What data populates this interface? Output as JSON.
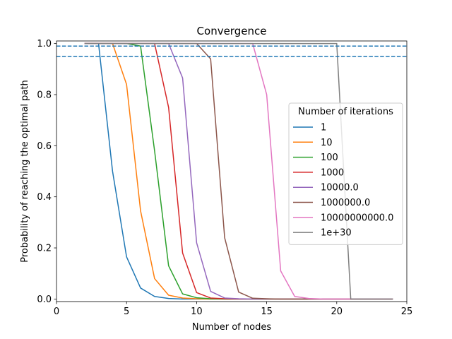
{
  "chart_data": {
    "type": "line",
    "title": "Convergence",
    "xlabel": "Number of nodes",
    "ylabel": "Probability of reaching the optimal path",
    "xlim": [
      0,
      25
    ],
    "ylim": [
      -0.01,
      1.01
    ],
    "xticks": [
      0,
      5,
      10,
      15,
      20,
      25
    ],
    "xtick_labels": [
      "0",
      "5",
      "10",
      "15",
      "20",
      "25"
    ],
    "yticks": [
      0.0,
      0.2,
      0.4,
      0.6,
      0.8,
      1.0
    ],
    "ytick_labels": [
      "0.0",
      "0.2",
      "0.4",
      "0.6",
      "0.8",
      "1.0"
    ],
    "grid": false,
    "legend_title": "Number of iterations",
    "legend_position": "center-right",
    "hlines": [
      {
        "y": 0.99,
        "style": "dashed",
        "color": "#1f77b4"
      },
      {
        "y": 0.95,
        "style": "dashed",
        "color": "#1f77b4"
      }
    ],
    "x": [
      2,
      3,
      4,
      5,
      6,
      7,
      8,
      9,
      10,
      11,
      12,
      13,
      14,
      15,
      16,
      17,
      18,
      19,
      20,
      21,
      22,
      23,
      24
    ],
    "series": [
      {
        "name": "1",
        "color": "#1f77b4",
        "values": [
          1.0,
          1.0,
          0.5,
          0.165,
          0.043,
          0.01,
          0.002,
          0.0,
          0.0,
          0.0,
          0.0,
          0.0,
          0.0,
          0.0,
          0.0,
          0.0,
          0.0,
          0.0,
          0.0,
          0.0,
          0.0,
          0.0,
          0.0
        ]
      },
      {
        "name": "10",
        "color": "#ff7f0e",
        "values": [
          1.0,
          1.0,
          1.0,
          0.84,
          0.345,
          0.08,
          0.015,
          0.004,
          0.001,
          0.0,
          0.0,
          0.0,
          0.0,
          0.0,
          0.0,
          0.0,
          0.0,
          0.0,
          0.0,
          0.0,
          0.0,
          0.0,
          0.0
        ]
      },
      {
        "name": "100",
        "color": "#2ca02c",
        "values": [
          1.0,
          1.0,
          1.0,
          1.0,
          0.99,
          0.58,
          0.13,
          0.02,
          0.005,
          0.001,
          0.0,
          0.0,
          0.0,
          0.0,
          0.0,
          0.0,
          0.0,
          0.0,
          0.0,
          0.0,
          0.0,
          0.0,
          0.0
        ]
      },
      {
        "name": "1000",
        "color": "#d62728",
        "values": [
          1.0,
          1.0,
          1.0,
          1.0,
          1.0,
          1.0,
          0.75,
          0.18,
          0.025,
          0.004,
          0.001,
          0.0,
          0.0,
          0.0,
          0.0,
          0.0,
          0.0,
          0.0,
          0.0,
          0.0,
          0.0,
          0.0,
          0.0
        ]
      },
      {
        "name": "10000.0",
        "color": "#9467bd",
        "values": [
          1.0,
          1.0,
          1.0,
          1.0,
          1.0,
          1.0,
          1.0,
          0.865,
          0.22,
          0.03,
          0.004,
          0.001,
          0.0,
          0.0,
          0.0,
          0.0,
          0.0,
          0.0,
          0.0,
          0.0,
          0.0,
          0.0,
          0.0
        ]
      },
      {
        "name": "1000000.0",
        "color": "#8c564b",
        "values": [
          1.0,
          1.0,
          1.0,
          1.0,
          1.0,
          1.0,
          1.0,
          1.0,
          1.0,
          0.94,
          0.24,
          0.027,
          0.003,
          0.001,
          0.0,
          0.0,
          0.0,
          0.0,
          0.0,
          0.0,
          0.0,
          0.0,
          0.0
        ]
      },
      {
        "name": "10000000000.0",
        "color": "#e377c2",
        "values": [
          1.0,
          1.0,
          1.0,
          1.0,
          1.0,
          1.0,
          1.0,
          1.0,
          1.0,
          1.0,
          1.0,
          1.0,
          1.0,
          0.8,
          0.11,
          0.01,
          0.002,
          0.0,
          0.0,
          0.0,
          0.0,
          0.0,
          0.0
        ]
      },
      {
        "name": "1e+30",
        "color": "#7f7f7f",
        "values": [
          1.0,
          1.0,
          1.0,
          1.0,
          1.0,
          1.0,
          1.0,
          1.0,
          1.0,
          1.0,
          1.0,
          1.0,
          1.0,
          1.0,
          1.0,
          1.0,
          1.0,
          1.0,
          1.0,
          0.0,
          0.0,
          0.0,
          0.0
        ]
      }
    ]
  }
}
